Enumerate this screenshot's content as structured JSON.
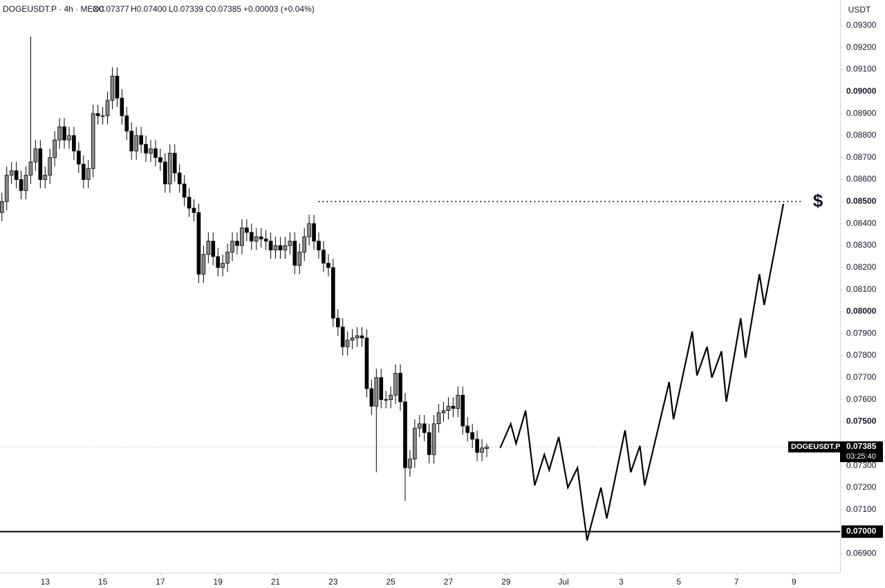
{
  "chart_data": {
    "type": "candlestick",
    "title": "DOGEUSDT.P · 4h · MEXC",
    "header": {
      "open": "O0.07377",
      "high": "H0.07400",
      "low": "L0.07339",
      "close": "C0.07385",
      "change": "+0.00003 (+0.04%)"
    },
    "y_axis_label": "USDT",
    "ylim": [
      0.06813,
      0.09416
    ],
    "yticks": [
      {
        "value": 0.069,
        "label": "0.06900"
      },
      {
        "value": 0.07,
        "label": "0.07000"
      },
      {
        "value": 0.071,
        "label": "0.07100"
      },
      {
        "value": 0.072,
        "label": "0.07200"
      },
      {
        "value": 0.073,
        "label": "0.07300"
      },
      {
        "value": 0.075,
        "label": "0.07500"
      },
      {
        "value": 0.076,
        "label": "0.07600"
      },
      {
        "value": 0.077,
        "label": "0.07700"
      },
      {
        "value": 0.078,
        "label": "0.07800"
      },
      {
        "value": 0.079,
        "label": "0.07900"
      },
      {
        "value": 0.08,
        "label": "0.08000"
      },
      {
        "value": 0.081,
        "label": "0.08100"
      },
      {
        "value": 0.082,
        "label": "0.08200"
      },
      {
        "value": 0.083,
        "label": "0.08300"
      },
      {
        "value": 0.084,
        "label": "0.08400"
      },
      {
        "value": 0.085,
        "label": "0.08500"
      },
      {
        "value": 0.086,
        "label": "0.08600"
      },
      {
        "value": 0.087,
        "label": "0.08700"
      },
      {
        "value": 0.088,
        "label": "0.08800"
      },
      {
        "value": 0.089,
        "label": "0.08900"
      },
      {
        "value": 0.09,
        "label": "0.09000"
      },
      {
        "value": 0.091,
        "label": "0.09100"
      },
      {
        "value": 0.092,
        "label": "0.09200"
      },
      {
        "value": 0.093,
        "label": "0.09300"
      }
    ],
    "xlim": [
      -0.4,
      174.6
    ],
    "xticks": [
      {
        "value": 9,
        "label": "13"
      },
      {
        "value": 21,
        "label": "15"
      },
      {
        "value": 33,
        "label": "17"
      },
      {
        "value": 45,
        "label": "19"
      },
      {
        "value": 57,
        "label": "21"
      },
      {
        "value": 69,
        "label": "23"
      },
      {
        "value": 81,
        "label": "25"
      },
      {
        "value": 93,
        "label": "27"
      },
      {
        "value": 105,
        "label": "29"
      },
      {
        "value": 117,
        "label": "Jul"
      },
      {
        "value": 129,
        "label": "3"
      },
      {
        "value": 141,
        "label": "5"
      },
      {
        "value": 153,
        "label": "7"
      },
      {
        "value": 165,
        "label": "9"
      }
    ],
    "ohlc": {
      "up_color": "#8a8a8a",
      "down_color": "#000000",
      "open": [
        0.0845,
        0.085,
        0.0862,
        0.0864,
        0.086,
        0.0855,
        0.0862,
        0.0868,
        0.0874,
        0.086,
        0.0862,
        0.087,
        0.0878,
        0.0884,
        0.0878,
        0.088,
        0.0873,
        0.0867,
        0.086,
        0.0865,
        0.089,
        0.0889,
        0.0889,
        0.0896,
        0.0907,
        0.0897,
        0.0889,
        0.0882,
        0.0873,
        0.088,
        0.0876,
        0.0872,
        0.0874,
        0.087,
        0.0868,
        0.0858,
        0.0872,
        0.0863,
        0.0858,
        0.0852,
        0.0847,
        0.0845,
        0.0817,
        0.0826,
        0.0832,
        0.0825,
        0.082,
        0.0822,
        0.0827,
        0.0832,
        0.083,
        0.0838,
        0.0836,
        0.0832,
        0.0834,
        0.0833,
        0.0832,
        0.0828,
        0.083,
        0.0828,
        0.083,
        0.0832,
        0.0821,
        0.0827,
        0.0834,
        0.084,
        0.0832,
        0.0828,
        0.0822,
        0.082,
        0.0797,
        0.0793,
        0.0784,
        0.0787,
        0.0788,
        0.0789,
        0.0788,
        0.0765,
        0.0757,
        0.077,
        0.076,
        0.076,
        0.0762,
        0.0772,
        0.0759,
        0.0729,
        0.0733,
        0.0747,
        0.0749,
        0.0745,
        0.0735,
        0.0749,
        0.0754,
        0.0755,
        0.0757,
        0.0756,
        0.0762,
        0.0748,
        0.0745,
        0.0742,
        0.0736,
        0.07377
      ],
      "high": [
        0.0854,
        0.0866,
        0.0868,
        0.0868,
        0.0864,
        0.0866,
        0.0925,
        0.0878,
        0.0878,
        0.0866,
        0.0874,
        0.0882,
        0.0888,
        0.0888,
        0.0884,
        0.0884,
        0.0877,
        0.0871,
        0.0869,
        0.0894,
        0.0894,
        0.0893,
        0.09,
        0.0911,
        0.0911,
        0.0901,
        0.0893,
        0.0886,
        0.0884,
        0.0884,
        0.088,
        0.0878,
        0.0878,
        0.0874,
        0.0872,
        0.0876,
        0.0876,
        0.0867,
        0.0862,
        0.0856,
        0.0851,
        0.0849,
        0.083,
        0.0836,
        0.0836,
        0.0829,
        0.0826,
        0.0831,
        0.0836,
        0.0836,
        0.0842,
        0.0842,
        0.084,
        0.0838,
        0.0838,
        0.0837,
        0.0836,
        0.0834,
        0.0834,
        0.0834,
        0.0836,
        0.0836,
        0.0831,
        0.0838,
        0.0844,
        0.0844,
        0.0836,
        0.0832,
        0.0826,
        0.0824,
        0.0801,
        0.0797,
        0.0791,
        0.0792,
        0.0793,
        0.0793,
        0.0792,
        0.0769,
        0.0774,
        0.0774,
        0.0764,
        0.0766,
        0.0776,
        0.0776,
        0.0763,
        0.0737,
        0.0751,
        0.0753,
        0.0753,
        0.0749,
        0.0753,
        0.0758,
        0.0759,
        0.0761,
        0.0761,
        0.0766,
        0.0766,
        0.0752,
        0.0749,
        0.0746,
        0.0742,
        0.074
      ],
      "low": [
        0.0841,
        0.0846,
        0.0858,
        0.0856,
        0.0851,
        0.0851,
        0.0858,
        0.0864,
        0.0856,
        0.0856,
        0.0858,
        0.0866,
        0.0874,
        0.0874,
        0.0874,
        0.0869,
        0.0863,
        0.0856,
        0.0856,
        0.0861,
        0.0885,
        0.0885,
        0.0885,
        0.0892,
        0.0893,
        0.0885,
        0.0878,
        0.0869,
        0.0869,
        0.0872,
        0.0868,
        0.0868,
        0.0866,
        0.0864,
        0.0854,
        0.0854,
        0.0859,
        0.0854,
        0.0848,
        0.0843,
        0.0841,
        0.0813,
        0.0813,
        0.0822,
        0.0821,
        0.0816,
        0.0816,
        0.0818,
        0.0823,
        0.0826,
        0.0826,
        0.0832,
        0.0828,
        0.0828,
        0.0829,
        0.0828,
        0.0824,
        0.0824,
        0.0824,
        0.0824,
        0.0826,
        0.0817,
        0.0817,
        0.0823,
        0.083,
        0.0828,
        0.0824,
        0.0818,
        0.0816,
        0.0793,
        0.0789,
        0.078,
        0.078,
        0.0783,
        0.0784,
        0.0784,
        0.0761,
        0.0753,
        0.0727,
        0.0756,
        0.0756,
        0.0756,
        0.0758,
        0.0755,
        0.0714,
        0.0725,
        0.0729,
        0.0743,
        0.0741,
        0.0731,
        0.0731,
        0.0745,
        0.075,
        0.0751,
        0.0752,
        0.0752,
        0.0744,
        0.0741,
        0.0738,
        0.0732,
        0.0732,
        0.07339
      ],
      "close": [
        0.085,
        0.0862,
        0.0864,
        0.086,
        0.0855,
        0.0862,
        0.0868,
        0.0874,
        0.086,
        0.0862,
        0.087,
        0.0878,
        0.0884,
        0.0878,
        0.088,
        0.0873,
        0.0867,
        0.086,
        0.0865,
        0.089,
        0.0889,
        0.0889,
        0.0896,
        0.0907,
        0.0897,
        0.0889,
        0.0882,
        0.0873,
        0.088,
        0.0876,
        0.0872,
        0.0874,
        0.087,
        0.0868,
        0.0858,
        0.0872,
        0.0863,
        0.0858,
        0.0852,
        0.0847,
        0.0845,
        0.0817,
        0.0826,
        0.0832,
        0.0825,
        0.082,
        0.0822,
        0.0827,
        0.0832,
        0.083,
        0.0838,
        0.0836,
        0.0832,
        0.0834,
        0.0833,
        0.0832,
        0.0828,
        0.083,
        0.0828,
        0.083,
        0.0832,
        0.0821,
        0.0827,
        0.0834,
        0.084,
        0.0832,
        0.0828,
        0.0822,
        0.082,
        0.0797,
        0.0793,
        0.0784,
        0.0787,
        0.0788,
        0.0789,
        0.0788,
        0.0765,
        0.0757,
        0.077,
        0.076,
        0.076,
        0.0762,
        0.0772,
        0.0759,
        0.0729,
        0.0733,
        0.0747,
        0.0749,
        0.0745,
        0.0735,
        0.0749,
        0.0754,
        0.0755,
        0.0757,
        0.0756,
        0.0762,
        0.0748,
        0.0745,
        0.0742,
        0.0736,
        0.0738,
        0.07385
      ]
    },
    "projection": {
      "color": "#000000",
      "x": [
        103.8,
        106.0,
        107.1,
        109.1,
        111.0,
        113.0,
        114.0,
        116.0,
        117.9,
        119.9,
        121.9,
        124.8,
        126.0,
        129.8,
        131.0,
        132.9,
        133.9,
        139.0,
        139.9,
        143.8,
        144.8,
        146.9,
        147.9,
        149.9,
        150.9,
        153.9,
        154.9,
        157.8,
        158.8,
        162.8
      ],
      "values": [
        0.0738,
        0.0749,
        0.074,
        0.0755,
        0.0721,
        0.0735,
        0.0728,
        0.0743,
        0.072,
        0.0729,
        0.0696,
        0.072,
        0.0706,
        0.0746,
        0.0727,
        0.0739,
        0.0721,
        0.0768,
        0.0751,
        0.0791,
        0.0771,
        0.0784,
        0.077,
        0.0782,
        0.0759,
        0.0797,
        0.0779,
        0.0817,
        0.0803,
        0.0849
      ]
    },
    "support_level": 0.07,
    "target_level": {
      "value": 0.085,
      "x": [
        65.9,
        166.7
      ],
      "marker": "$"
    },
    "last_price": {
      "symbol": "DOGEUSDT.P",
      "value": 0.07385,
      "countdown": "03:25:40"
    }
  }
}
